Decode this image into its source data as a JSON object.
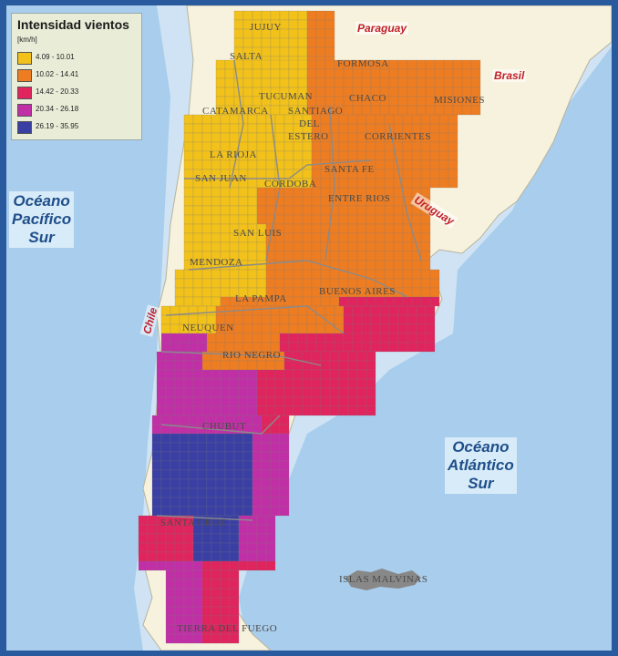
{
  "legend": {
    "title": "Intensidad vientos",
    "unit": "[km/h]",
    "items": [
      {
        "label": "4.09 - 10.01",
        "color": "#f2c21b"
      },
      {
        "label": "10.02 - 14.41",
        "color": "#ee7d22"
      },
      {
        "label": "14.42 - 20.33",
        "color": "#e0245e"
      },
      {
        "label": "20.34 - 26.18",
        "color": "#c12fa6"
      },
      {
        "label": "26.19 - 35.95",
        "color": "#3a3fa3"
      }
    ]
  },
  "colors": {
    "ocean": "#a9cdec",
    "land": "#f6f2dd",
    "frame": "#2a5a9e",
    "grid": "#999999"
  },
  "oceans": {
    "pacific": {
      "line1": "Océano",
      "line2": "Pacífico",
      "line3": "Sur"
    },
    "atlantic": {
      "line1": "Océano",
      "line2": "Atlántico",
      "line3": "Sur"
    }
  },
  "countries": {
    "paraguay": "Paraguay",
    "brasil": "Brasil",
    "uruguay": "Uruguay",
    "chile": "Chile"
  },
  "provinces": {
    "jujuy": "JUJUY",
    "salta": "SALTA",
    "formosa": "FORMOSA",
    "tucuman": "TUCUMAN",
    "chaco": "CHACO",
    "misiones": "MISIONES",
    "catamarca": "CATAMARCA",
    "santiago": "SANTIAGO",
    "del": "DEL",
    "estero": "ESTERO",
    "corrientes": "CORRIENTES",
    "la_rioja": "LA RIOJA",
    "san_juan": "SAN JUAN",
    "cordoba": "CORDOBA",
    "santa_fe": "SANTA FE",
    "entre_rios": "ENTRE RIOS",
    "san_luis": "SAN LUIS",
    "mendoza": "MENDOZA",
    "buenos_aires": "BUENOS AIRES",
    "la_pampa": "LA PAMPA",
    "neuquen": "NEUQUEN",
    "rio_negro": "RIO NEGRO",
    "chubut": "CHUBUT",
    "santa_cruz": "SANTA CRUZ",
    "malvinas": "ISLAS MALVINAS",
    "tierra_del_fuego": "TIERRA DEL FUEGO"
  }
}
